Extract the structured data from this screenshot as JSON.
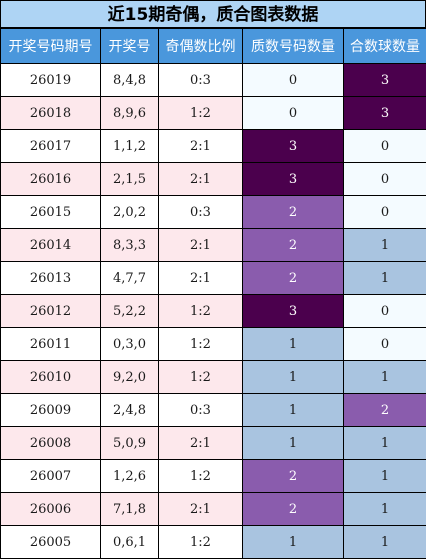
{
  "title": "近15期奇偶，质合图表数据",
  "headers": [
    "开奖号码期号",
    "开奖号",
    "奇偶数比例",
    "质数号码数量",
    "合数球数量"
  ],
  "rows": [
    {
      "issue": "26019",
      "numbers": "8,4,8",
      "odd_even": "0:3",
      "prime_count": "0",
      "composite_count": "3"
    },
    {
      "issue": "26018",
      "numbers": "8,9,6",
      "odd_even": "1:2",
      "prime_count": "0",
      "composite_count": "3"
    },
    {
      "issue": "26017",
      "numbers": "1,1,2",
      "odd_even": "2:1",
      "prime_count": "3",
      "composite_count": "0"
    },
    {
      "issue": "26016",
      "numbers": "2,1,5",
      "odd_even": "2:1",
      "prime_count": "3",
      "composite_count": "0"
    },
    {
      "issue": "26015",
      "numbers": "2,0,2",
      "odd_even": "0:3",
      "prime_count": "2",
      "composite_count": "0"
    },
    {
      "issue": "26014",
      "numbers": "8,3,3",
      "odd_even": "2:1",
      "prime_count": "2",
      "composite_count": "1"
    },
    {
      "issue": "26013",
      "numbers": "4,7,7",
      "odd_even": "2:1",
      "prime_count": "2",
      "composite_count": "1"
    },
    {
      "issue": "26012",
      "numbers": "5,2,2",
      "odd_even": "1:2",
      "prime_count": "3",
      "composite_count": "0"
    },
    {
      "issue": "26011",
      "numbers": "0,3,0",
      "odd_even": "1:2",
      "prime_count": "1",
      "composite_count": "0"
    },
    {
      "issue": "26010",
      "numbers": "9,2,0",
      "odd_even": "1:2",
      "prime_count": "1",
      "composite_count": "1"
    },
    {
      "issue": "26009",
      "numbers": "2,4,8",
      "odd_even": "0:3",
      "prime_count": "1",
      "composite_count": "2"
    },
    {
      "issue": "26008",
      "numbers": "5,0,9",
      "odd_even": "2:1",
      "prime_count": "1",
      "composite_count": "1"
    },
    {
      "issue": "26007",
      "numbers": "1,2,6",
      "odd_even": "1:2",
      "prime_count": "2",
      "composite_count": "1"
    },
    {
      "issue": "26006",
      "numbers": "7,1,8",
      "odd_even": "2:1",
      "prime_count": "2",
      "composite_count": "1"
    },
    {
      "issue": "26005",
      "numbers": "0,6,1",
      "odd_even": "1:2",
      "prime_count": "1",
      "composite_count": "1"
    }
  ],
  "colors": {
    "title_bg": "#aed4f4",
    "header_bg": "#4a97dc",
    "row_alt_bg": "#fde8ec",
    "count_3": "#4b004d",
    "count_2": "#8a5cad",
    "count_1": "#a9c4e0",
    "count_0": "#f4fbff"
  }
}
